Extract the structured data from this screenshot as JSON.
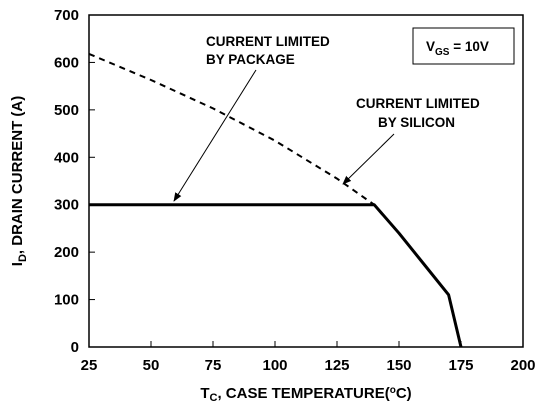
{
  "chart_data": {
    "type": "line",
    "x_ticks": [
      "25",
      "50",
      "75",
      "100",
      "125",
      "150",
      "175",
      "200"
    ],
    "y_ticks": [
      "0",
      "100",
      "200",
      "300",
      "400",
      "500",
      "600",
      "700"
    ],
    "xlim": [
      25,
      200
    ],
    "ylim": [
      0,
      700
    ],
    "grid": false,
    "xlabel": {
      "main": "T",
      "sub": "C",
      "rest": ", CASE TEMPERATURE(",
      "sup": "o",
      "end": "C)"
    },
    "ylabel": {
      "main": "I",
      "sub": "D",
      "rest": ", DRAIN CURRENT (A)"
    },
    "series": [
      {
        "style": "dashed",
        "x": [
          25,
          50,
          75,
          100,
          125,
          140
        ],
        "y": [
          618,
          563,
          503,
          435,
          355,
          300
        ]
      },
      {
        "style": "solid-thick",
        "x": [
          25,
          140,
          150,
          160,
          170,
          175
        ],
        "y": [
          300,
          300,
          240,
          175,
          110,
          0
        ]
      }
    ],
    "annotations": [
      {
        "lines": [
          "CURRENT LIMITED",
          "BY PACKAGE"
        ]
      },
      {
        "lines": [
          "CURRENT LIMITED",
          "BY SILICON"
        ]
      }
    ],
    "legend": {
      "main": "V",
      "sub": "GS",
      "rest": " = 10V"
    }
  }
}
